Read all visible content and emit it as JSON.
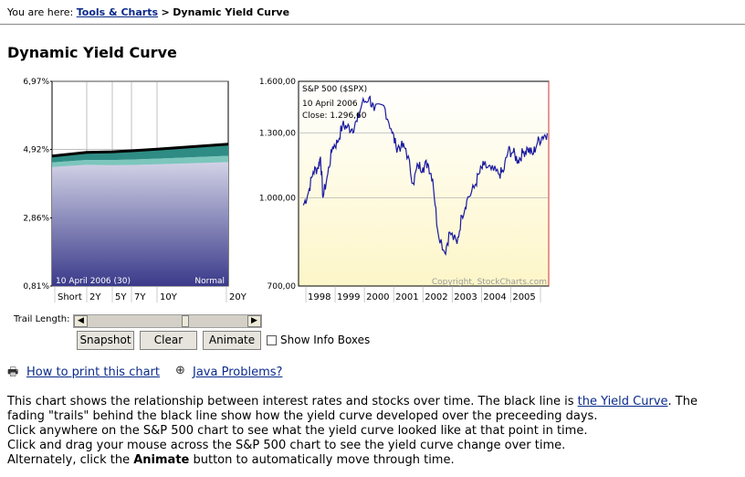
{
  "breadcrumb": {
    "prefix": "You are here:",
    "link": "Tools & Charts",
    "sep": ">",
    "current": "Dynamic Yield Curve"
  },
  "page_title": "Dynamic Yield Curve",
  "yield_chart": {
    "y_ticks": [
      "6,97%",
      "4,92%",
      "2,86%",
      "0,81%"
    ],
    "x_ticks": [
      "Short",
      "2Y",
      "5Y",
      "7Y",
      "10Y",
      "20Y"
    ],
    "date_label": "10 April 2006 (30)",
    "status": "Normal"
  },
  "sp_chart": {
    "title": "S&P 500 ($SPX)",
    "date_label": "10 April 2006",
    "close_label": "Close: 1.296,60",
    "copyright": "Copyright, StockCharts.com",
    "y_ticks": [
      "1.600,00",
      "1.300,00",
      "1.000,00",
      "700,00"
    ],
    "x_ticks": [
      "1998",
      "1999",
      "2000",
      "2001",
      "2002",
      "2003",
      "2004",
      "2005"
    ]
  },
  "chart_data": [
    {
      "type": "area",
      "title": "",
      "xlabel": "",
      "ylabel": "",
      "categories": [
        "Short",
        "2Y",
        "5Y",
        "7Y",
        "10Y",
        "20Y"
      ],
      "values": [
        4.72,
        4.83,
        4.85,
        4.88,
        4.93,
        5.08
      ],
      "ylim": [
        0.81,
        6.97
      ]
    },
    {
      "type": "line",
      "title": "S&P 500 ($SPX)",
      "xlabel": "",
      "ylabel": "",
      "x": [
        "1997-12",
        "1998-02",
        "1998-04",
        "1998-06",
        "1998-07",
        "1998-08",
        "1998-10",
        "1998-12",
        "1999-02",
        "1999-04",
        "1999-06",
        "1999-08",
        "1999-10",
        "1999-12",
        "2000-03",
        "2000-05",
        "2000-09",
        "2000-12",
        "2001-02",
        "2001-04",
        "2001-06",
        "2001-09",
        "2001-11",
        "2002-01",
        "2002-03",
        "2002-05",
        "2002-07",
        "2002-10",
        "2002-12",
        "2003-03",
        "2003-05",
        "2003-07",
        "2003-10",
        "2003-12",
        "2004-02",
        "2004-05",
        "2004-08",
        "2004-10",
        "2004-12",
        "2005-02",
        "2005-04",
        "2005-06",
        "2005-08",
        "2005-10",
        "2005-12",
        "2006-02",
        "2006-04"
      ],
      "values": [
        970,
        1020,
        1110,
        1130,
        1180,
        1000,
        1100,
        1230,
        1250,
        1340,
        1330,
        1320,
        1360,
        1460,
        1500,
        1420,
        1450,
        1320,
        1230,
        1230,
        1220,
        1060,
        1140,
        1130,
        1150,
        1080,
        880,
        800,
        870,
        830,
        930,
        990,
        1040,
        1100,
        1140,
        1120,
        1100,
        1110,
        1210,
        1200,
        1160,
        1200,
        1220,
        1190,
        1250,
        1280,
        1296.6
      ],
      "ylim": [
        700,
        1600
      ]
    }
  ],
  "controls": {
    "trail_label": "Trail Length:",
    "snapshot": "Snapshot",
    "clear": "Clear",
    "animate": "Animate",
    "info_boxes": "Show Info Boxes"
  },
  "links": {
    "print": "How to print this chart",
    "java": "Java Problems?"
  },
  "description": {
    "line1_a": "This chart shows the relationship between interest rates and stocks over time. The black line is ",
    "line1_link": "the Yield Curve",
    "line1_b": ". The",
    "line2": "fading \"trails\" behind the black line show how the yield curve developed over the preceeding days.",
    "line3": "Click anywhere on the S&P 500 chart to see what the yield curve looked like at that point in time.",
    "line4": "Click and drag your mouse across the S&P 500 chart to see the yield curve change over time.",
    "line5_a": "Alternately, click the ",
    "line5_bold": "Animate",
    "line5_b": " button to automatically move through time."
  },
  "colors": {
    "link": "#0a2a8a",
    "yield_fill": "#5a5aa0",
    "sp_line": "#1a1aa0",
    "sp_bg": "#fffde6"
  }
}
